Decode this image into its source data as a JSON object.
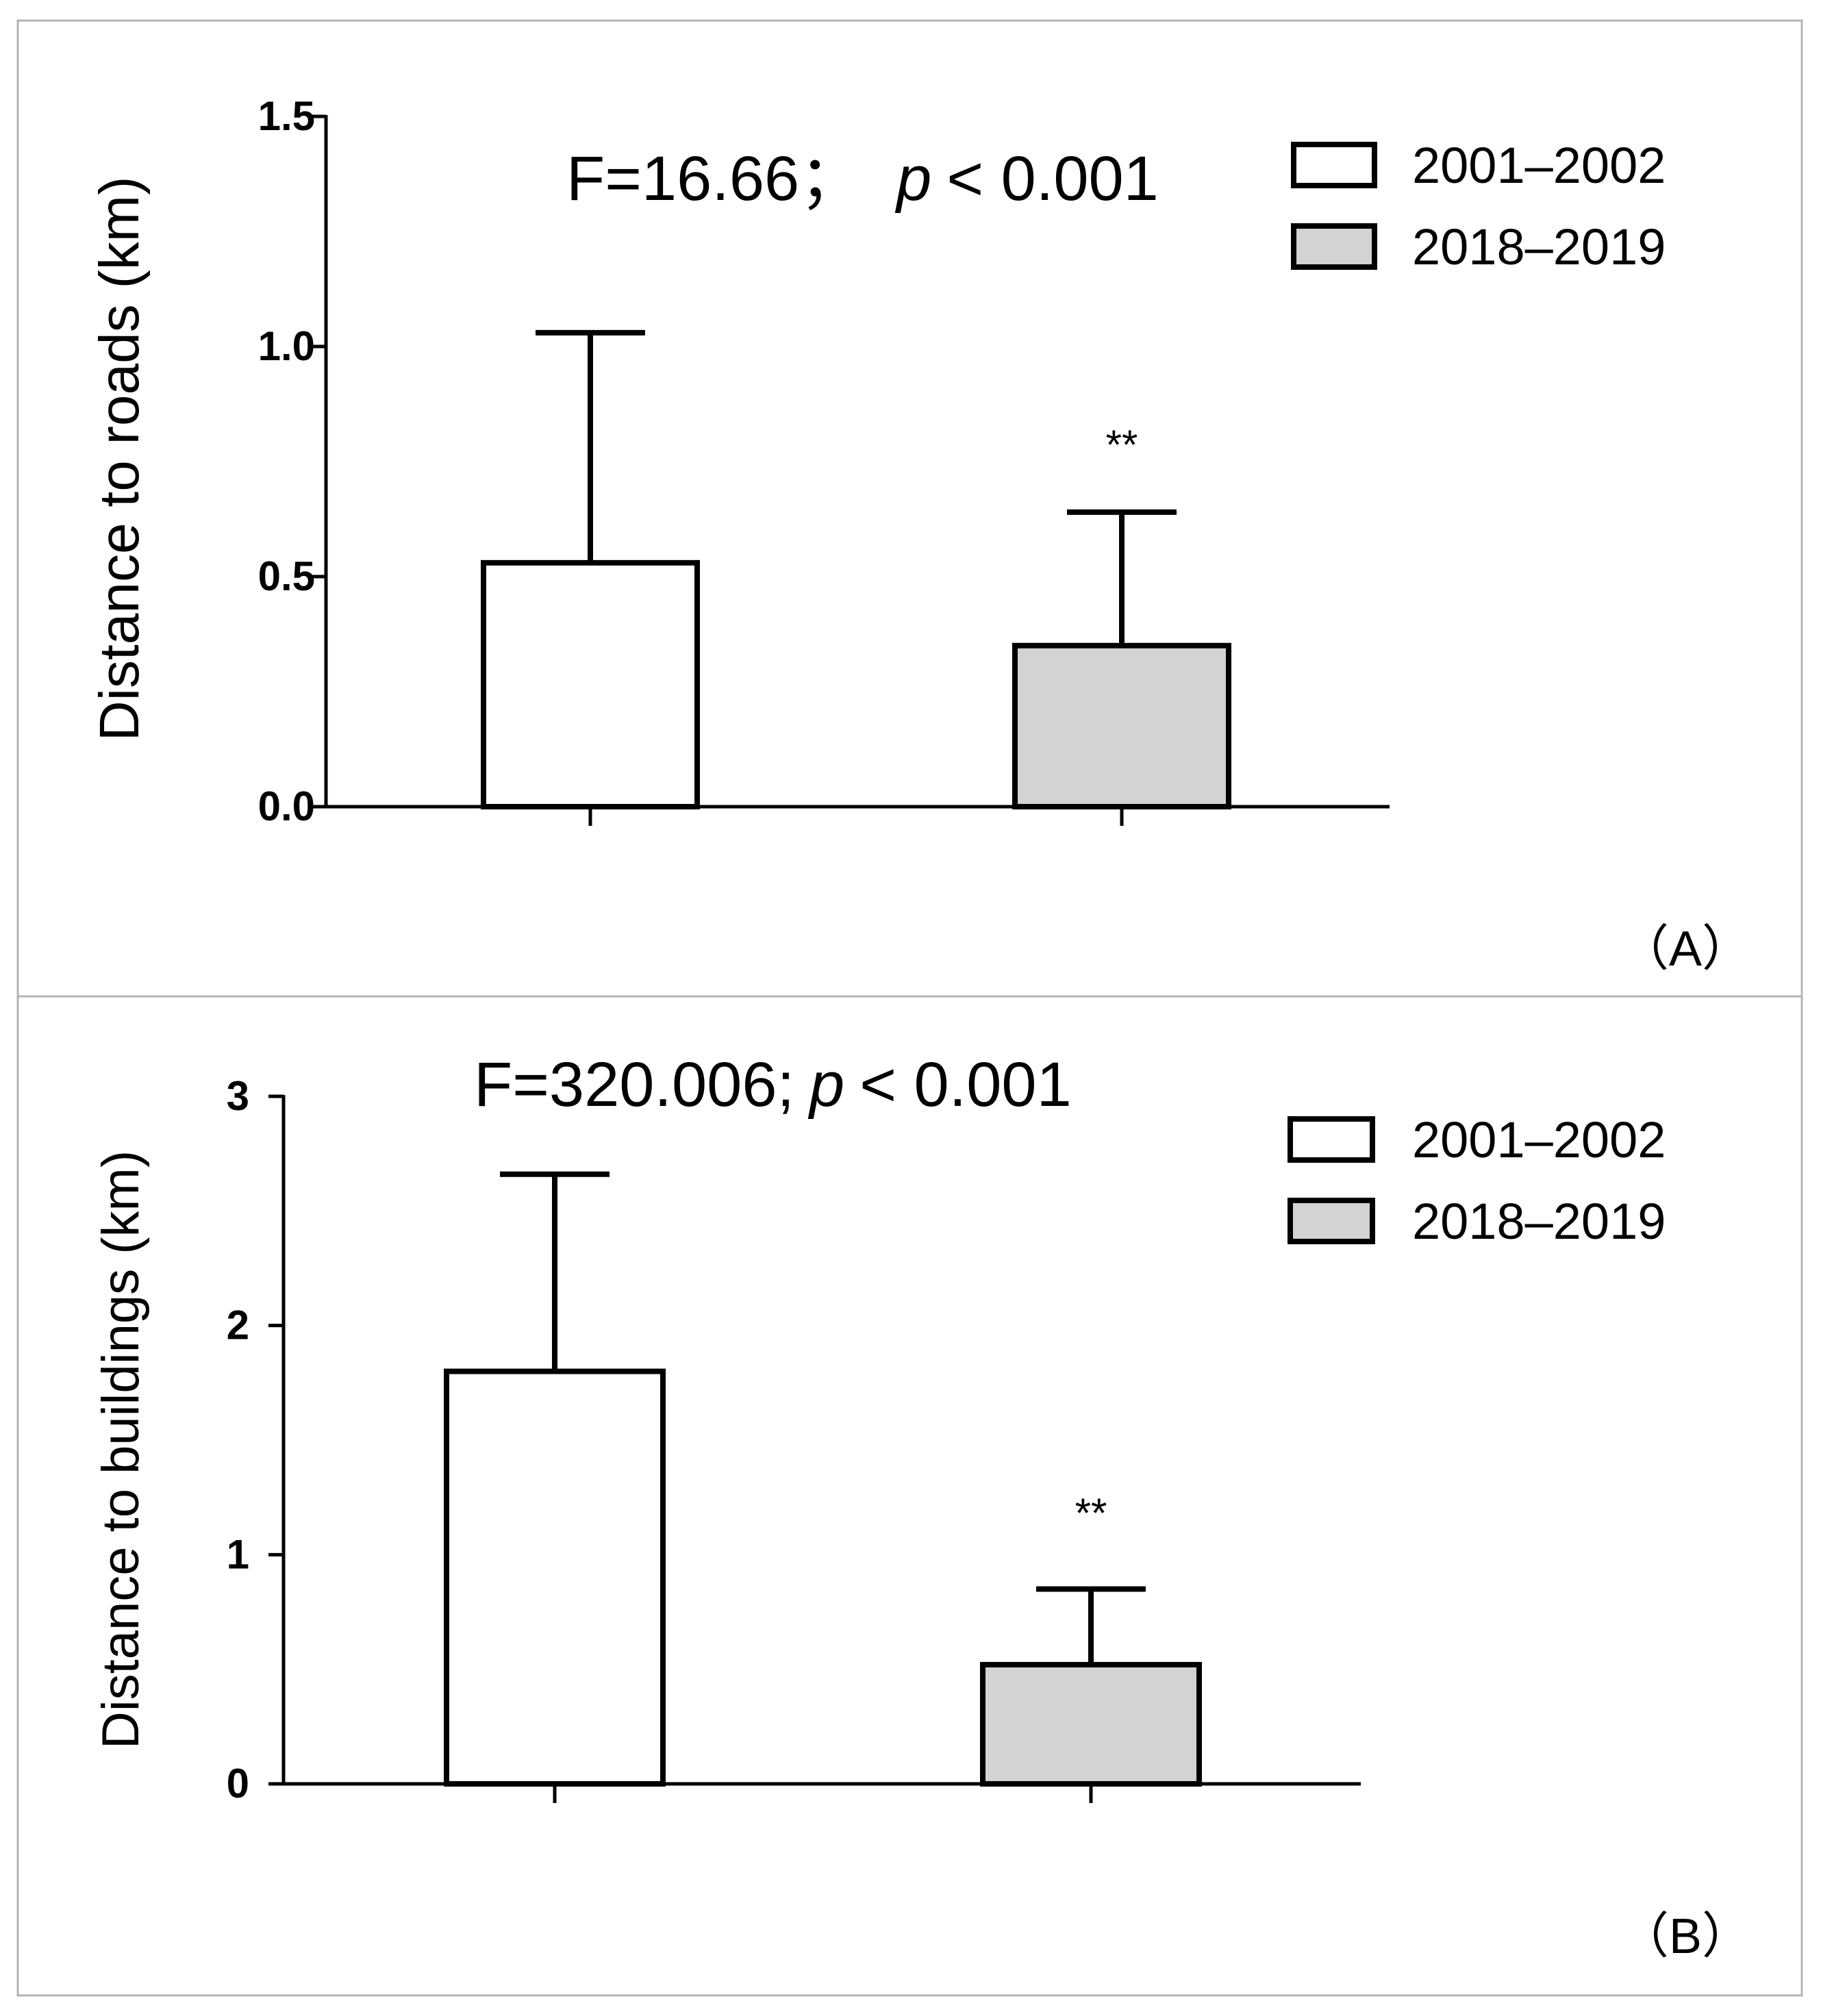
{
  "colors": {
    "frame": "#b4b4b4",
    "ink": "#000000",
    "bar_2001_2002": "#ffffff",
    "bar_2018_2019": "#d3d3d3"
  },
  "chart_data": [
    {
      "panel_label": "（A）",
      "type": "bar",
      "title": "F=16.66； p < 0.001",
      "title_parts": {
        "stat": "F=16.66；",
        "p": "p",
        "rest": "< 0.001"
      },
      "xlabel": "",
      "ylabel": "Distance to roads (km)",
      "ylim": [
        0,
        1.5
      ],
      "yticks": [
        "0.0",
        "0.5",
        "1.0",
        "1.5"
      ],
      "tick_values": [
        0,
        0.5,
        1.0,
        1.5
      ],
      "legend_position": "top-right",
      "categories": [
        "2001–2002",
        "2018–2019"
      ],
      "values": [
        0.53,
        0.35
      ],
      "error_bars": [
        1.03,
        0.64
      ],
      "annotations": [
        "",
        "**"
      ]
    },
    {
      "panel_label": "（B）",
      "type": "bar",
      "title": "F=320.006; p < 0.001",
      "title_parts": {
        "stat": "F=320.006;",
        "p": "p",
        "rest": "< 0.001"
      },
      "xlabel": "",
      "ylabel": "Distance to buildings (km)",
      "ylim": [
        0,
        3
      ],
      "yticks": [
        "0",
        "1",
        "2",
        "3"
      ],
      "tick_values": [
        0,
        1,
        2,
        3
      ],
      "legend_position": "top-right",
      "categories": [
        "2001–2002",
        "2018–2019"
      ],
      "values": [
        1.8,
        0.52
      ],
      "error_bars": [
        2.66,
        0.85
      ],
      "annotations": [
        "",
        "**"
      ]
    }
  ]
}
